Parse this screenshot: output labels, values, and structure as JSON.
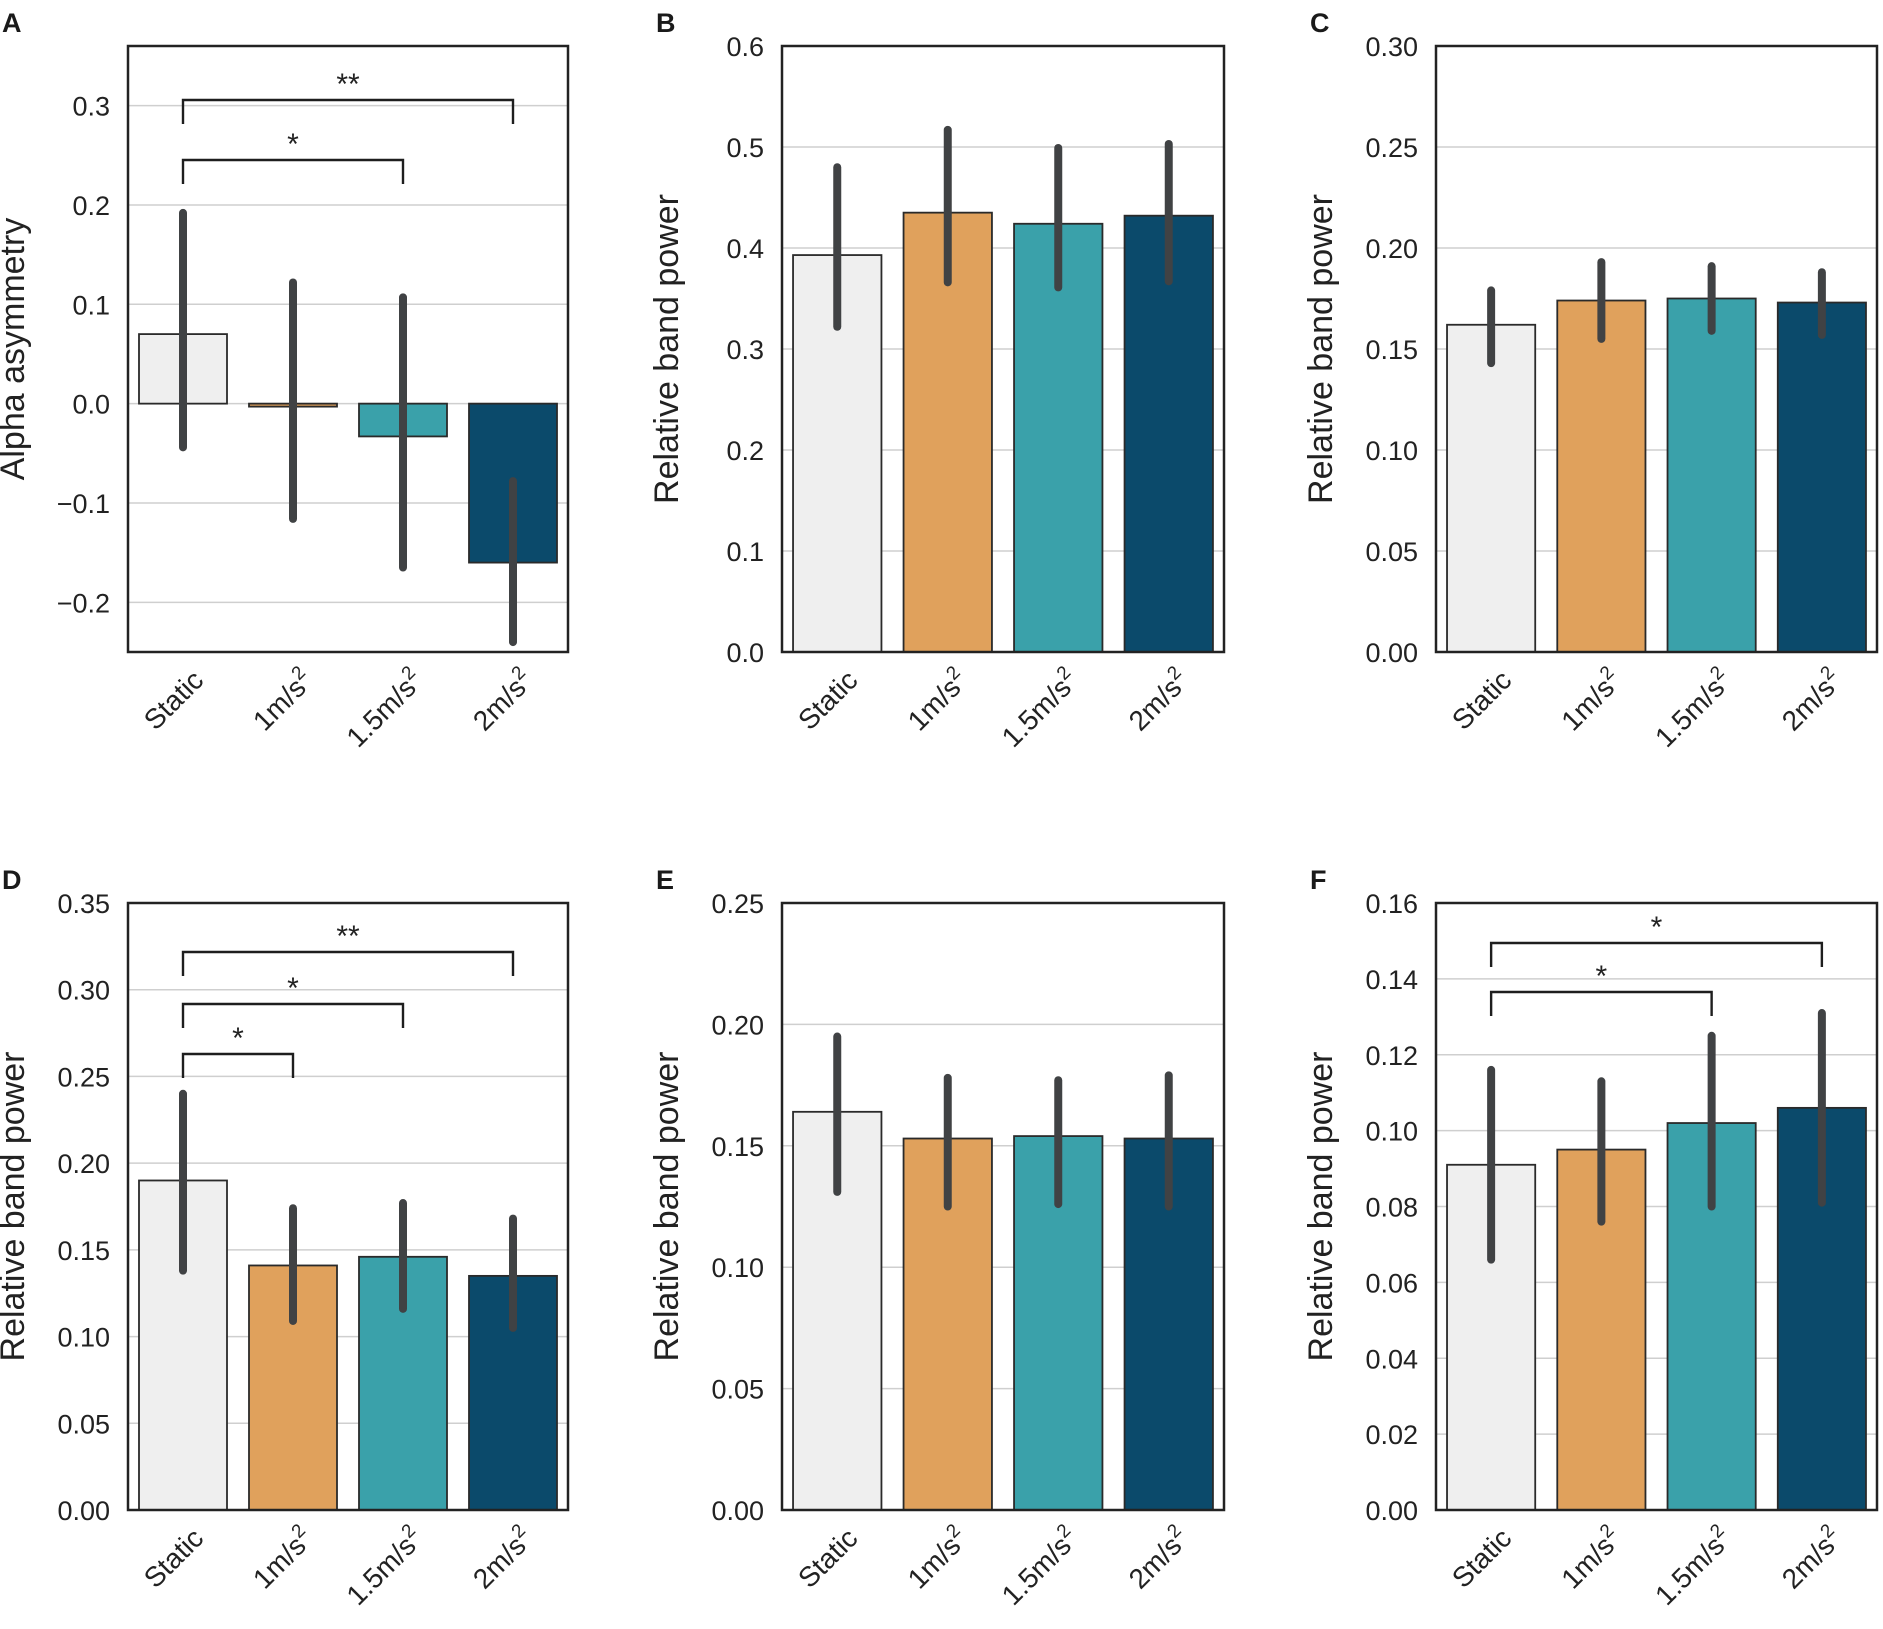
{
  "colors": {
    "static": "#efefef",
    "1m": "#e0a15c",
    "1_5m": "#3aa1aa",
    "2m": "#0b4a6b",
    "errorbar": "#404244",
    "grid": "#cfcfcf",
    "frame": "#222222"
  },
  "chart_data": [
    {
      "panel": "A",
      "type": "bar",
      "ylabel": "Alpha asymmetry",
      "categories": [
        "Static",
        "1m/s2",
        "1.5m/s2",
        "2m/s2"
      ],
      "values": [
        0.07,
        -0.003,
        -0.033,
        -0.16
      ],
      "err_low": [
        -0.044,
        -0.116,
        -0.165,
        -0.24
      ],
      "err_high": [
        0.192,
        0.122,
        0.107,
        -0.078
      ],
      "ylim": [
        -0.25,
        0.36
      ],
      "ticks": [
        -0.2,
        -0.1,
        0.0,
        0.1,
        0.2,
        0.3
      ],
      "tick_labels": [
        "−0.2",
        "−0.1",
        "0.0",
        "0.1",
        "0.2",
        "0.3"
      ],
      "significance": [
        {
          "from": 0,
          "to": 3,
          "label": "**"
        },
        {
          "from": 0,
          "to": 2,
          "label": "*"
        }
      ]
    },
    {
      "panel": "B",
      "type": "bar",
      "ylabel": "Relative band power",
      "categories": [
        "Static",
        "1m/s2",
        "1.5m/s2",
        "2m/s2"
      ],
      "values": [
        0.393,
        0.435,
        0.424,
        0.432
      ],
      "err_low": [
        0.322,
        0.366,
        0.361,
        0.367
      ],
      "err_high": [
        0.48,
        0.517,
        0.499,
        0.503
      ],
      "ylim": [
        0,
        0.6
      ],
      "ticks": [
        0.0,
        0.1,
        0.2,
        0.3,
        0.4,
        0.5,
        0.6
      ],
      "tick_labels": [
        "0.0",
        "0.1",
        "0.2",
        "0.3",
        "0.4",
        "0.5",
        "0.6"
      ],
      "significance": []
    },
    {
      "panel": "C",
      "type": "bar",
      "ylabel": "Relative band power",
      "categories": [
        "Static",
        "1m/s2",
        "1.5m/s2",
        "2m/s2"
      ],
      "values": [
        0.162,
        0.174,
        0.175,
        0.173
      ],
      "err_low": [
        0.143,
        0.155,
        0.159,
        0.157
      ],
      "err_high": [
        0.179,
        0.193,
        0.191,
        0.188
      ],
      "ylim": [
        0,
        0.3
      ],
      "ticks": [
        0.0,
        0.05,
        0.1,
        0.15,
        0.2,
        0.25,
        0.3
      ],
      "tick_labels": [
        "0.00",
        "0.05",
        "0.10",
        "0.15",
        "0.20",
        "0.25",
        "0.30"
      ],
      "significance": []
    },
    {
      "panel": "D",
      "type": "bar",
      "ylabel": "Relative band power",
      "categories": [
        "Static",
        "1m/s2",
        "1.5m/s2",
        "2m/s2"
      ],
      "values": [
        0.19,
        0.141,
        0.146,
        0.135
      ],
      "err_low": [
        0.138,
        0.109,
        0.116,
        0.105
      ],
      "err_high": [
        0.24,
        0.174,
        0.177,
        0.168
      ],
      "ylim": [
        0,
        0.35
      ],
      "ticks": [
        0.0,
        0.05,
        0.1,
        0.15,
        0.2,
        0.25,
        0.3,
        0.35
      ],
      "tick_labels": [
        "0.00",
        "0.05",
        "0.10",
        "0.15",
        "0.20",
        "0.25",
        "0.30",
        "0.35"
      ],
      "significance": [
        {
          "from": 0,
          "to": 3,
          "label": "**"
        },
        {
          "from": 0,
          "to": 2,
          "label": "*"
        },
        {
          "from": 0,
          "to": 1,
          "label": "*"
        }
      ]
    },
    {
      "panel": "E",
      "type": "bar",
      "ylabel": "Relative band power",
      "categories": [
        "Static",
        "1m/s2",
        "1.5m/s2",
        "2m/s2"
      ],
      "values": [
        0.164,
        0.153,
        0.154,
        0.153
      ],
      "err_low": [
        0.131,
        0.125,
        0.126,
        0.125
      ],
      "err_high": [
        0.195,
        0.178,
        0.177,
        0.179
      ],
      "ylim": [
        0,
        0.25
      ],
      "ticks": [
        0.0,
        0.05,
        0.1,
        0.15,
        0.2,
        0.25
      ],
      "tick_labels": [
        "0.00",
        "0.05",
        "0.10",
        "0.15",
        "0.20",
        "0.25"
      ],
      "significance": []
    },
    {
      "panel": "F",
      "type": "bar",
      "ylabel": "Relative band power",
      "categories": [
        "Static",
        "1m/s2",
        "1.5m/s2",
        "2m/s2"
      ],
      "values": [
        0.091,
        0.095,
        0.102,
        0.106
      ],
      "err_low": [
        0.066,
        0.076,
        0.08,
        0.081
      ],
      "err_high": [
        0.116,
        0.113,
        0.125,
        0.131
      ],
      "ylim": [
        0,
        0.16
      ],
      "ticks": [
        0.0,
        0.02,
        0.04,
        0.06,
        0.08,
        0.1,
        0.12,
        0.14,
        0.16
      ],
      "tick_labels": [
        "0.00",
        "0.02",
        "0.04",
        "0.06",
        "0.08",
        "0.10",
        "0.12",
        "0.14",
        "0.16"
      ],
      "significance": [
        {
          "from": 0,
          "to": 3,
          "label": "*"
        },
        {
          "from": 0,
          "to": 2,
          "label": "*"
        }
      ]
    }
  ]
}
